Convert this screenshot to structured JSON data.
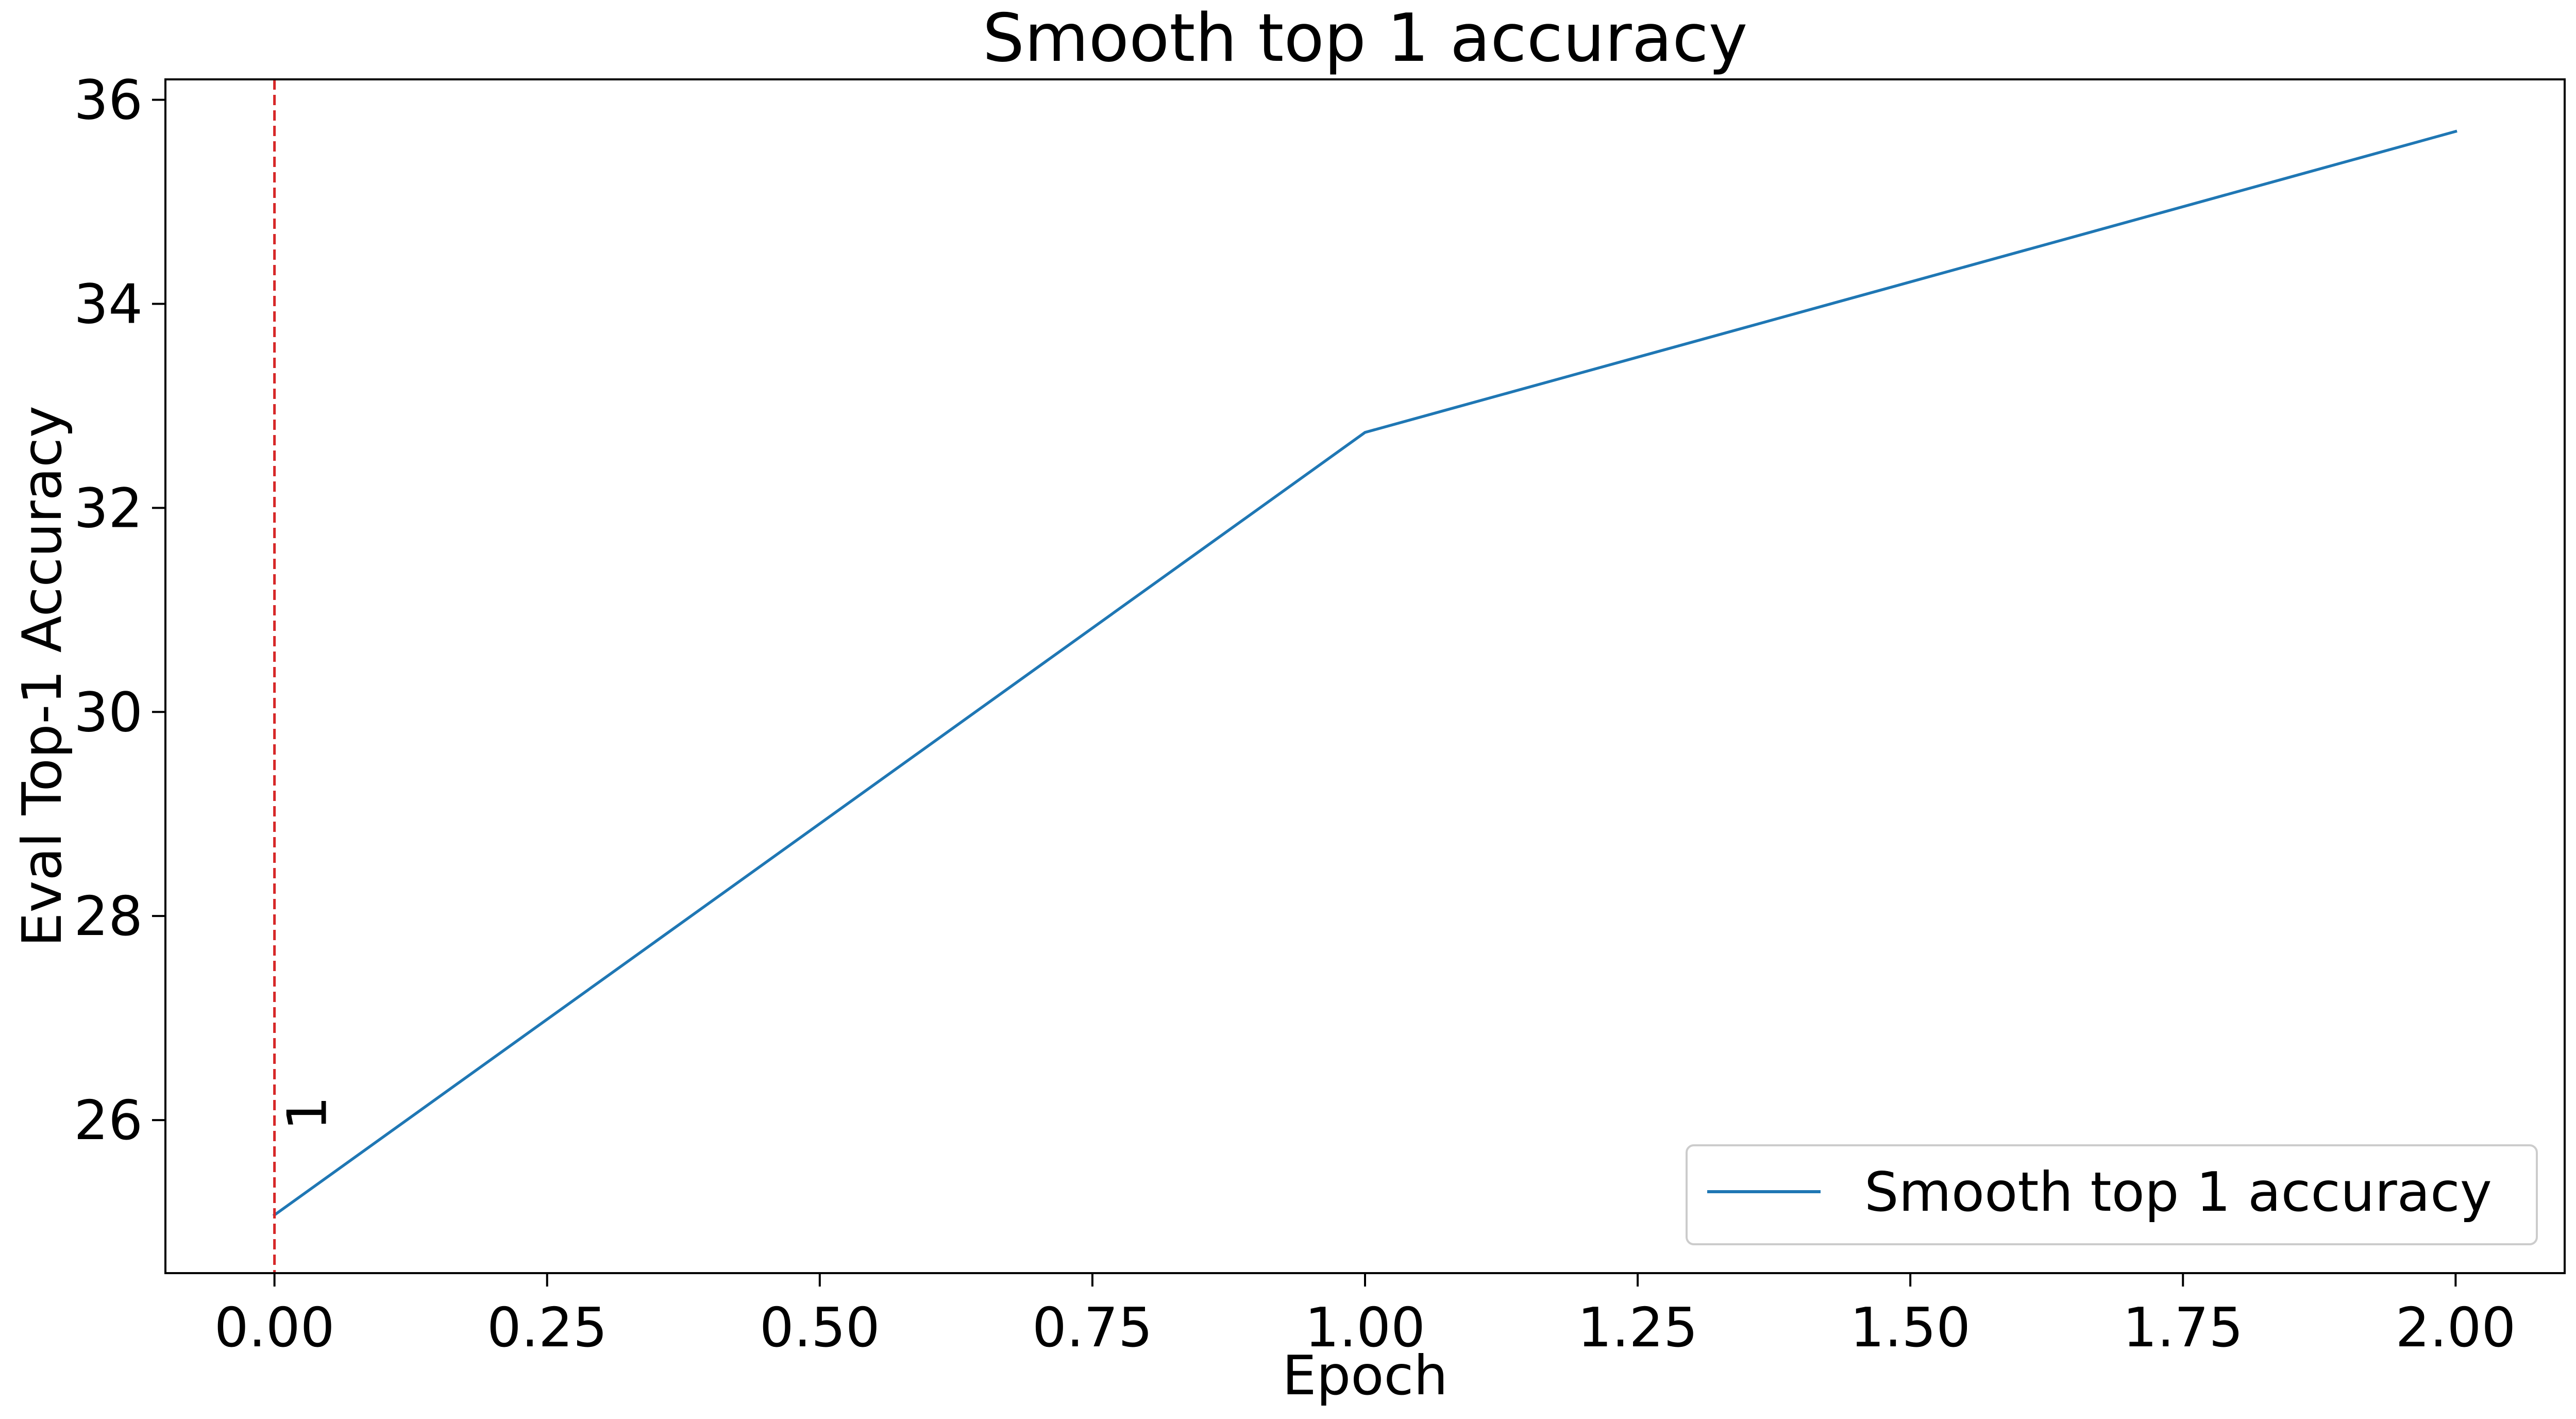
{
  "chart_data": {
    "type": "line",
    "title": "Smooth top 1 accuracy",
    "xlabel": "Epoch",
    "ylabel": "Eval Top-1 Accuracy",
    "xlim": [
      -0.1,
      2.1
    ],
    "ylim": [
      24.5,
      36.2
    ],
    "x_ticks": [
      0.0,
      0.25,
      0.5,
      0.75,
      1.0,
      1.25,
      1.5,
      1.75,
      2.0
    ],
    "x_tick_labels": [
      "0.00",
      "0.25",
      "0.50",
      "0.75",
      "1.00",
      "1.25",
      "1.50",
      "1.75",
      "2.00"
    ],
    "y_ticks": [
      26,
      28,
      30,
      32,
      34,
      36
    ],
    "y_tick_labels": [
      "26",
      "28",
      "30",
      "32",
      "34",
      "36"
    ],
    "grid": false,
    "legend_position": "lower-right",
    "series": [
      {
        "name": "Smooth top 1 accuracy",
        "color": "#1f77b4",
        "x": [
          0,
          1,
          2
        ],
        "y": [
          25.07,
          32.74,
          35.69
        ]
      }
    ],
    "annotations": [
      {
        "kind": "vertical-dashed-line",
        "x": 0,
        "color": "#d62728",
        "label": "1",
        "label_y": 26.0
      }
    ]
  }
}
